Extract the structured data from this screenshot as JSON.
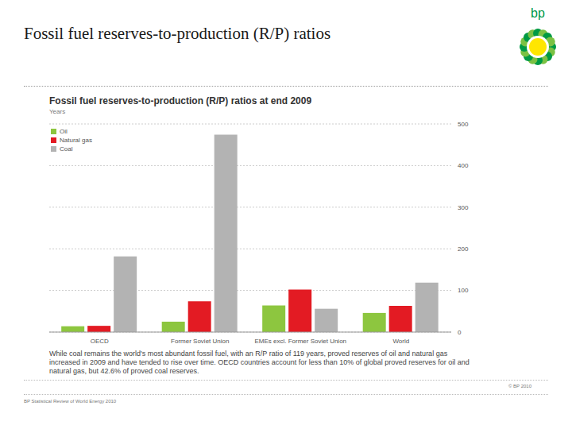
{
  "header": {
    "title": "Fossil fuel reserves-to-production (R/P) ratios",
    "logo_text": "bp"
  },
  "chart_data": {
    "type": "bar",
    "title": "Fossil fuel reserves-to-production (R/P) ratios at end 2009",
    "subtitle": "Years",
    "categories": [
      "OECD",
      "Former Soviet Union",
      "EMEs excl. Former Soviet Union",
      "World"
    ],
    "series": [
      {
        "name": "Oil",
        "color": "#8dc63f",
        "values": [
          14,
          25,
          64,
          46
        ]
      },
      {
        "name": "Natural gas",
        "color": "#e31b23",
        "values": [
          15,
          74,
          102,
          63
        ]
      },
      {
        "name": "Coal",
        "color": "#b3b3b3",
        "values": [
          182,
          474,
          56,
          119
        ]
      }
    ],
    "ylim": [
      0,
      500
    ],
    "yticks": [
      0,
      100,
      200,
      300,
      400,
      500
    ],
    "grid": true,
    "legend": "top-left"
  },
  "caption": "While coal remains the world's most abundant fossil fuel, with an R/P ratio of 119 years, proved reserves of oil and natural gas increased in 2009 and have tended to rise over time. OECD countries account for less than 10% of global proved reserves for oil and natural gas, but 42.6% of proved coal reserves.",
  "footer": {
    "source": "BP Statistical Review of World Energy 2010",
    "copyright": "© BP 2010"
  }
}
